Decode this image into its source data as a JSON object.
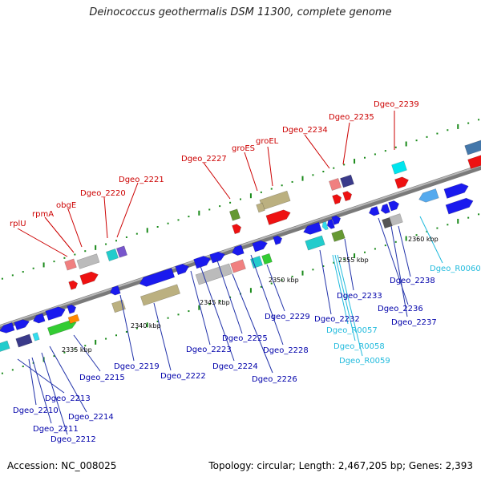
{
  "title": "Deinococcus geothermalis DSM 11300, complete genome",
  "accession": "Accession: NC_008025",
  "stats": "Topology: circular; Length: 2,467,205 bp; Genes: 2,393",
  "colors": {
    "upper_label": "#cc0000",
    "lower_label": "#0000aa",
    "rna_label": "#22bbdd",
    "backbone": "#888888",
    "tick": "#1a8a1a"
  },
  "kbp_marks": [
    "2335 kbp",
    "2340 kbp",
    "2345 kbp",
    "2350 kbp",
    "2355 kbp",
    "2360 kbp"
  ],
  "upper_labels": [
    "rplU",
    "rpmA",
    "obgE",
    "Dgeo_2220",
    "Dgeo_2221",
    "Dgeo_2227",
    "groES",
    "groEL",
    "Dgeo_2234",
    "Dgeo_2235",
    "Dgeo_2239"
  ],
  "lower_labels": [
    "Dgeo_2210",
    "Dgeo_2211",
    "Dgeo_2212",
    "Dgeo_2213",
    "Dgeo_2214",
    "Dgeo_2215",
    "Dgeo_2219",
    "Dgeo_2222",
    "Dgeo_2223",
    "Dgeo_2224",
    "Dgeo_2225",
    "Dgeo_2226",
    "Dgeo_2228",
    "Dgeo_2229",
    "Dgeo_2232",
    "Dgeo_2233",
    "Dgeo_2236",
    "Dgeo_2237",
    "Dgeo_2238"
  ],
  "rna_labels": [
    "Dgeo_R0057",
    "Dgeo_R0058",
    "Dgeo_R0059",
    "Dgeo_R0060"
  ]
}
